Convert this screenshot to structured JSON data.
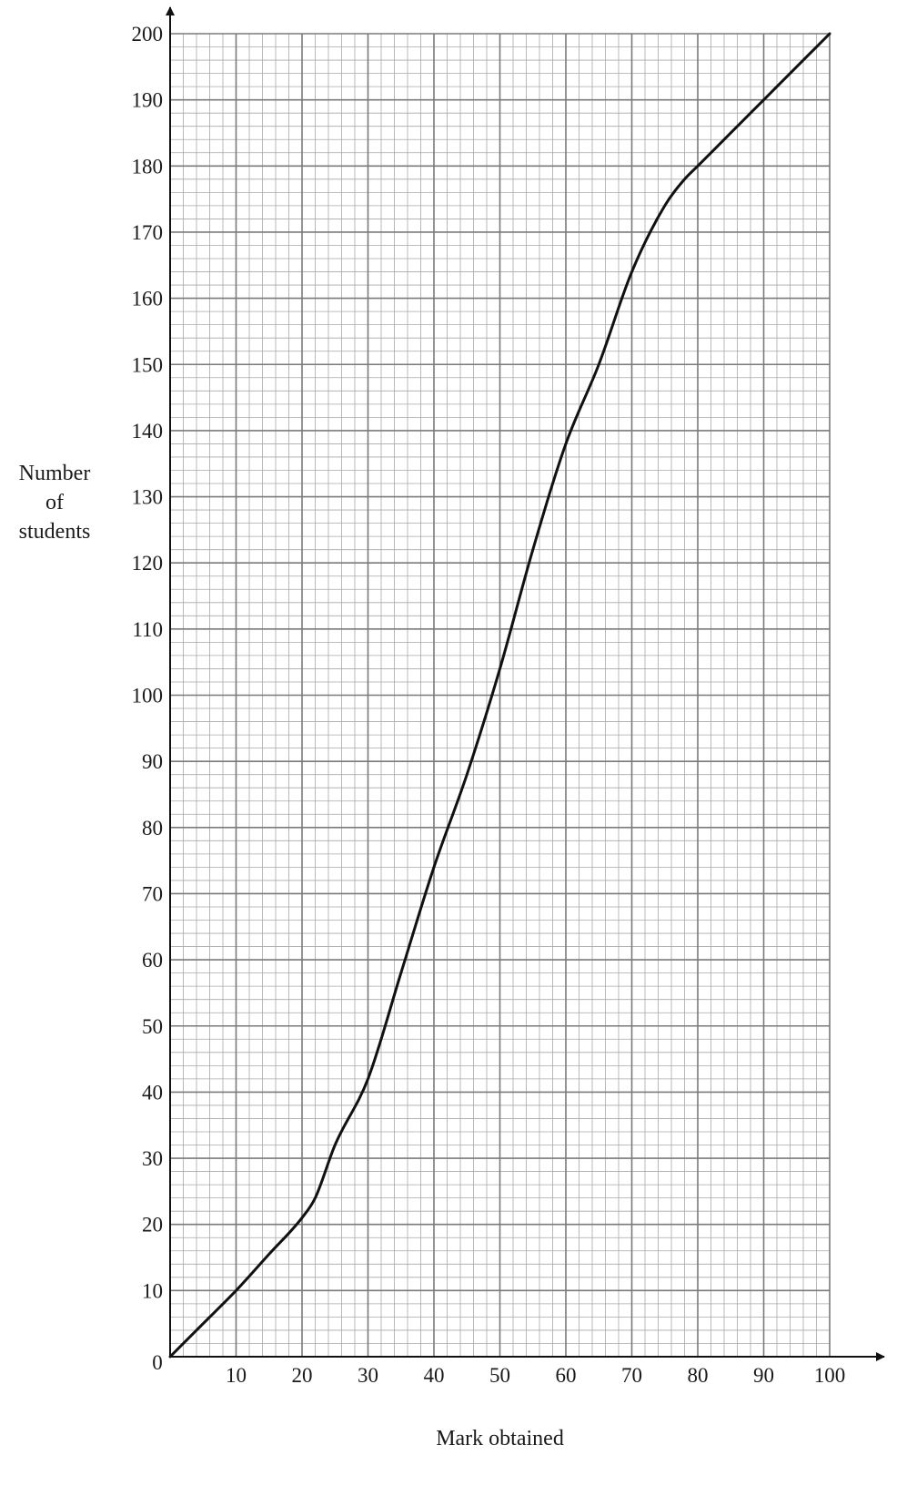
{
  "chart_data": {
    "type": "line",
    "title": "",
    "xlabel": "Mark obtained",
    "ylabel_lines": [
      "Number",
      "of",
      "students"
    ],
    "xlim": [
      0,
      100
    ],
    "ylim": [
      0,
      200
    ],
    "origin_label": "0",
    "x_ticks": [
      10,
      20,
      30,
      40,
      50,
      60,
      70,
      80,
      90,
      100
    ],
    "y_ticks": [
      10,
      20,
      30,
      40,
      50,
      60,
      70,
      80,
      90,
      100,
      110,
      120,
      130,
      140,
      150,
      160,
      170,
      180,
      190,
      200
    ],
    "grid": {
      "major_step_x": 10,
      "major_step_y": 10,
      "minor_step_x": 2,
      "minor_step_y": 2
    },
    "series": [
      {
        "x": [
          0,
          5,
          10,
          15,
          20,
          22,
          25,
          30,
          35,
          40,
          45,
          50,
          55,
          60,
          65,
          70,
          75,
          78,
          80,
          85,
          90,
          95,
          100
        ],
        "y": [
          0,
          5,
          10,
          15.5,
          21,
          24,
          32,
          42,
          58,
          74,
          88,
          104,
          122,
          138,
          150,
          164,
          174,
          178,
          180,
          185,
          190,
          195,
          200
        ]
      }
    ]
  }
}
